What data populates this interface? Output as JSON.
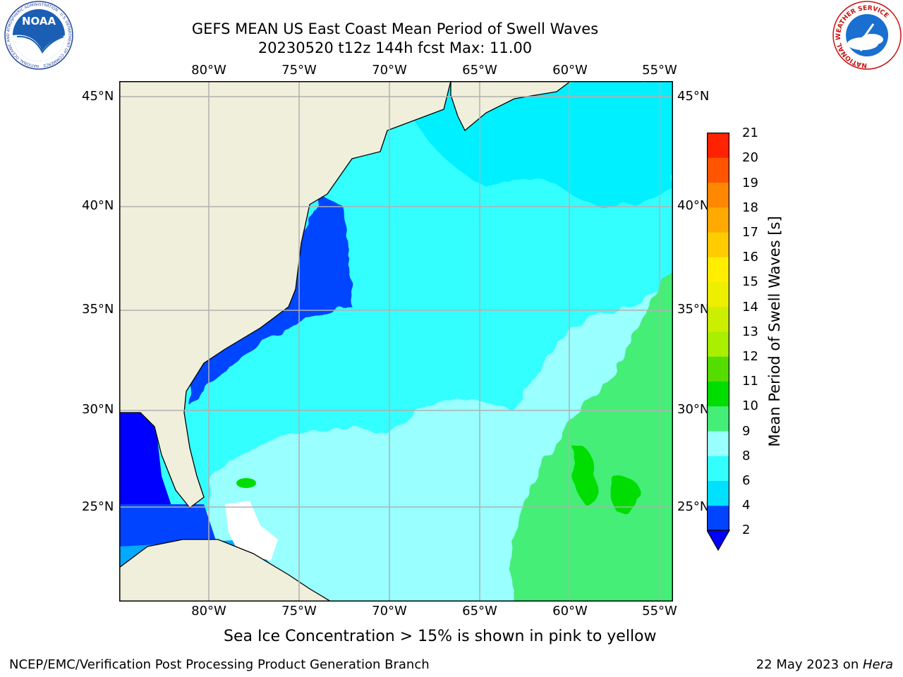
{
  "header": {
    "title_line1": "GEFS MEAN US East Coast Mean Period of Swell Waves",
    "title_line2": "20230520 t12z 144h fcst   Max: 11.00"
  },
  "logos": {
    "noaa_text": "NOAA",
    "noaa_ring_text": "NATIONAL OCEANIC AND ATMOSPHERIC ADMINISTRATION · U.S. DEPARTMENT OF COMMERCE",
    "nws_ring_text": "NATIONAL WEATHER SERVICE"
  },
  "map": {
    "lon_labels": [
      "80°W",
      "75°W",
      "70°W",
      "65°W",
      "60°W",
      "55°W"
    ],
    "lat_labels": [
      "45°N",
      "40°N",
      "35°N",
      "30°N",
      "25°N"
    ],
    "land_color": "#efefdc",
    "grid_color": "#b0b0b0"
  },
  "colorbar": {
    "label": "Mean Period of Swell Waves [s]",
    "ticks": [
      "2",
      "4",
      "6",
      "8",
      "9",
      "10",
      "11",
      "12",
      "13",
      "14",
      "15",
      "16",
      "17",
      "18",
      "19",
      "20",
      "21"
    ],
    "colors": [
      "#0044ff",
      "#00e0ff",
      "#33ffff",
      "#99ffff",
      "#44ee77",
      "#00dd00",
      "#55dd00",
      "#aaee00",
      "#ccee00",
      "#eeee00",
      "#ffee00",
      "#ffcc00",
      "#ffaa00",
      "#ff8800",
      "#ff5500",
      "#ff2200"
    ],
    "under_color": "#0000ff"
  },
  "footer": {
    "note": "Sea Ice Concentration > 15% is shown in pink to yellow",
    "left": "NCEP/EMC/Verification Post Processing Product Generation Branch",
    "date": "22 May 2023 on ",
    "machine": "Hera"
  }
}
